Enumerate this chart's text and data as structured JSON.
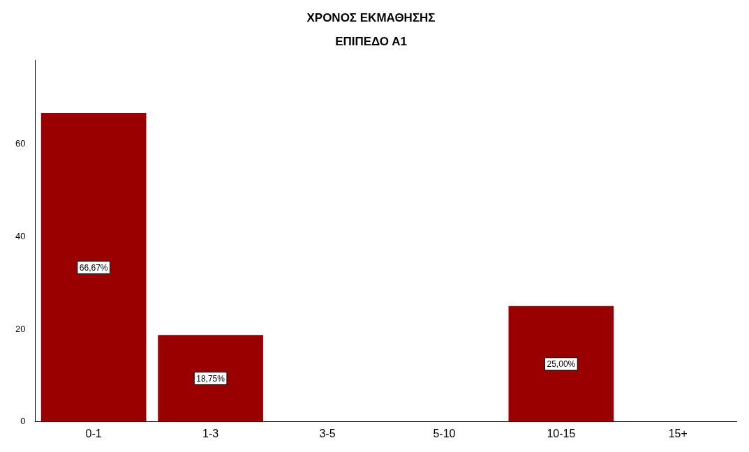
{
  "chart_data": {
    "type": "bar",
    "title": "ΧΡΟΝΟΣ ΕΚΜΑΘΗΣΗΣ",
    "subtitle": "ΕΠΙΠΕΔΟ Α1",
    "categories": [
      "0-1",
      "1-3",
      "3-5",
      "5-10",
      "10-15",
      "15+"
    ],
    "values": [
      66.67,
      18.75,
      null,
      null,
      25,
      null
    ],
    "value_labels": [
      "66,67%",
      "18,75%",
      null,
      null,
      "25,00%",
      null
    ],
    "color": "#990000",
    "ylim": [
      0,
      78
    ],
    "yticks": [
      0,
      20,
      40,
      60
    ],
    "grid": false,
    "legend": false
  }
}
